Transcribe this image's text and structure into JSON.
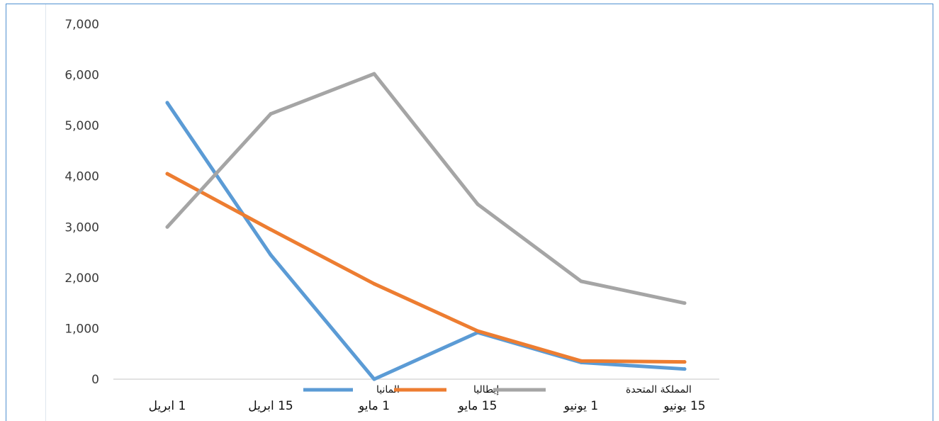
{
  "chart_data": {
    "type": "line",
    "title": "",
    "xlabel": "",
    "ylabel": "",
    "categories": [
      "1 ابريل",
      "15 ابريل",
      "1 مايو",
      "15 مايو",
      "1 يونيو",
      "15 يونيو"
    ],
    "y_ticks": [
      "0",
      "1,000",
      "2,000",
      "3,000",
      "4,000",
      "5,000",
      "6,000",
      "7,000"
    ],
    "ylim": [
      0,
      7000
    ],
    "grid": false,
    "legend_position": "bottom",
    "series": [
      {
        "name": "المانيا",
        "color": "#5b9bd5",
        "values": [
          5450,
          2450,
          0,
          920,
          330,
          200
        ]
      },
      {
        "name": "إيطاليا",
        "color": "#ed7d31",
        "values": [
          4050,
          2950,
          1880,
          950,
          360,
          340
        ]
      },
      {
        "name": "المملكة المتحدة",
        "color": "#a5a5a5",
        "values": [
          3000,
          5230,
          6020,
          3450,
          1930,
          1500
        ]
      }
    ]
  }
}
